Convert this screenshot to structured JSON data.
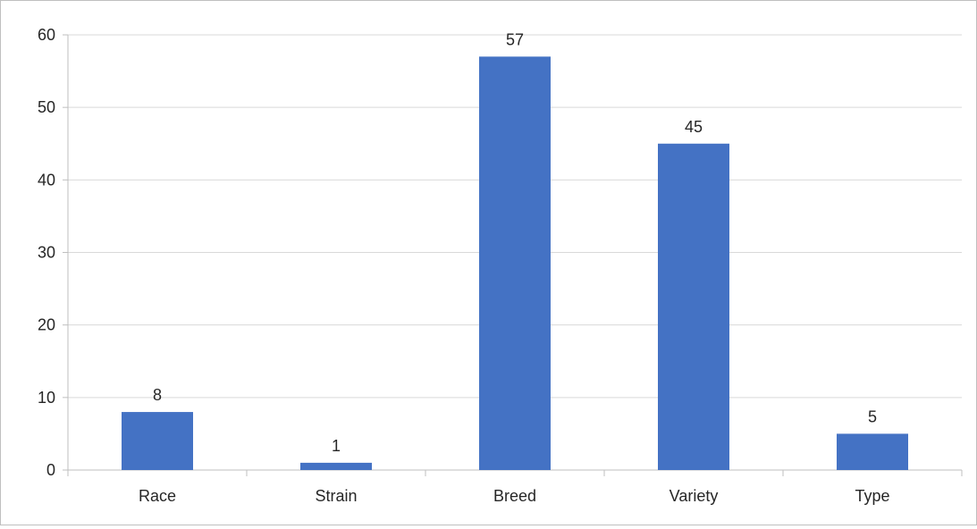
{
  "chart_data": {
    "type": "bar",
    "categories": [
      "Race",
      "Strain",
      "Breed",
      "Variety",
      "Type"
    ],
    "values": [
      8,
      1,
      57,
      45,
      5
    ],
    "data_labels": [
      "8",
      "1",
      "57",
      "45",
      "5"
    ],
    "title": "",
    "xlabel": "",
    "ylabel": "",
    "ylim": [
      0,
      60
    ],
    "yticks": [
      0,
      10,
      20,
      30,
      40,
      50,
      60
    ],
    "ytick_labels": [
      "0",
      "10",
      "20",
      "30",
      "40",
      "50",
      "60"
    ],
    "grid": true,
    "legend": "none",
    "bar_color": "#4472c4",
    "grid_color": "#d9d9d9",
    "axis_color": "#bfbfbf",
    "text_color": "#262626"
  }
}
